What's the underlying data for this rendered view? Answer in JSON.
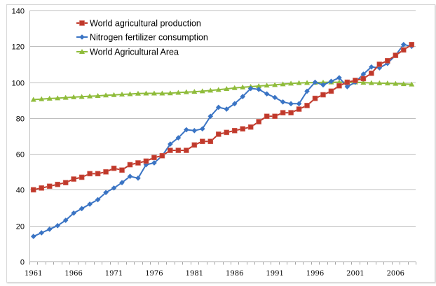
{
  "chart_data": {
    "type": "line",
    "title": "",
    "xlabel": "",
    "ylabel": "",
    "ylim": [
      0,
      140
    ],
    "y_ticks": [
      0,
      20,
      40,
      60,
      80,
      100,
      120,
      140
    ],
    "x_tick_labels": [
      "1961",
      "1966",
      "1971",
      "1976",
      "1981",
      "1986",
      "1991",
      "1996",
      "2001",
      "2006"
    ],
    "grid": "horizontal",
    "legend_position": "top-left",
    "x": [
      1961,
      1962,
      1963,
      1964,
      1965,
      1966,
      1967,
      1968,
      1969,
      1970,
      1971,
      1972,
      1973,
      1974,
      1975,
      1976,
      1977,
      1978,
      1979,
      1980,
      1981,
      1982,
      1983,
      1984,
      1985,
      1986,
      1987,
      1988,
      1989,
      1990,
      1991,
      1992,
      1993,
      1994,
      1995,
      1996,
      1997,
      1998,
      1999,
      2000,
      2001,
      2002,
      2003,
      2004,
      2005,
      2006,
      2007,
      2008
    ],
    "series": [
      {
        "name": "World agricultural production",
        "color": "#c0392b",
        "marker": "square",
        "values": [
          40,
          41,
          42,
          43,
          44,
          46,
          47,
          49,
          49,
          50,
          52,
          51,
          54,
          55,
          56,
          58,
          59,
          62,
          62,
          62,
          65,
          67,
          67,
          71,
          72,
          73,
          74,
          75,
          78,
          81,
          81,
          83,
          83,
          85,
          87,
          91,
          93,
          95,
          98,
          100,
          101,
          102,
          105,
          110,
          112,
          115,
          118,
          121
        ]
      },
      {
        "name": "Nitrogen fertilizer consumption",
        "color": "#3a74c4",
        "marker": "diamond",
        "values": [
          14,
          16,
          18,
          20,
          23,
          27,
          29.5,
          32,
          34.5,
          38.5,
          41,
          44,
          47.5,
          46.5,
          54,
          55,
          59,
          65.5,
          69,
          73.5,
          73,
          74,
          81,
          86,
          85,
          88,
          92,
          96.5,
          96,
          93.5,
          91.5,
          89,
          88,
          88,
          95,
          100,
          98.5,
          100.5,
          102.5,
          97.5,
          100,
          104.5,
          108.5,
          108,
          110.5,
          115,
          121,
          120
        ]
      },
      {
        "name": "World Agricultural Area",
        "color": "#8fbc3b",
        "marker": "triangle",
        "values": [
          90.3,
          90.6,
          90.9,
          91.1,
          91.4,
          91.7,
          91.9,
          92.2,
          92.4,
          92.7,
          92.9,
          93.2,
          93.4,
          93.7,
          93.8,
          93.8,
          93.8,
          93.9,
          94.2,
          94.5,
          94.7,
          95.0,
          95.4,
          95.8,
          96.3,
          96.8,
          97.2,
          97.5,
          97.9,
          98.2,
          98.5,
          98.9,
          99.3,
          99.6,
          99.7,
          99.8,
          99.9,
          100.0,
          100.0,
          100.0,
          100.0,
          99.8,
          99.6,
          99.5,
          99.4,
          99.2,
          99.0,
          98.8
        ]
      }
    ]
  }
}
